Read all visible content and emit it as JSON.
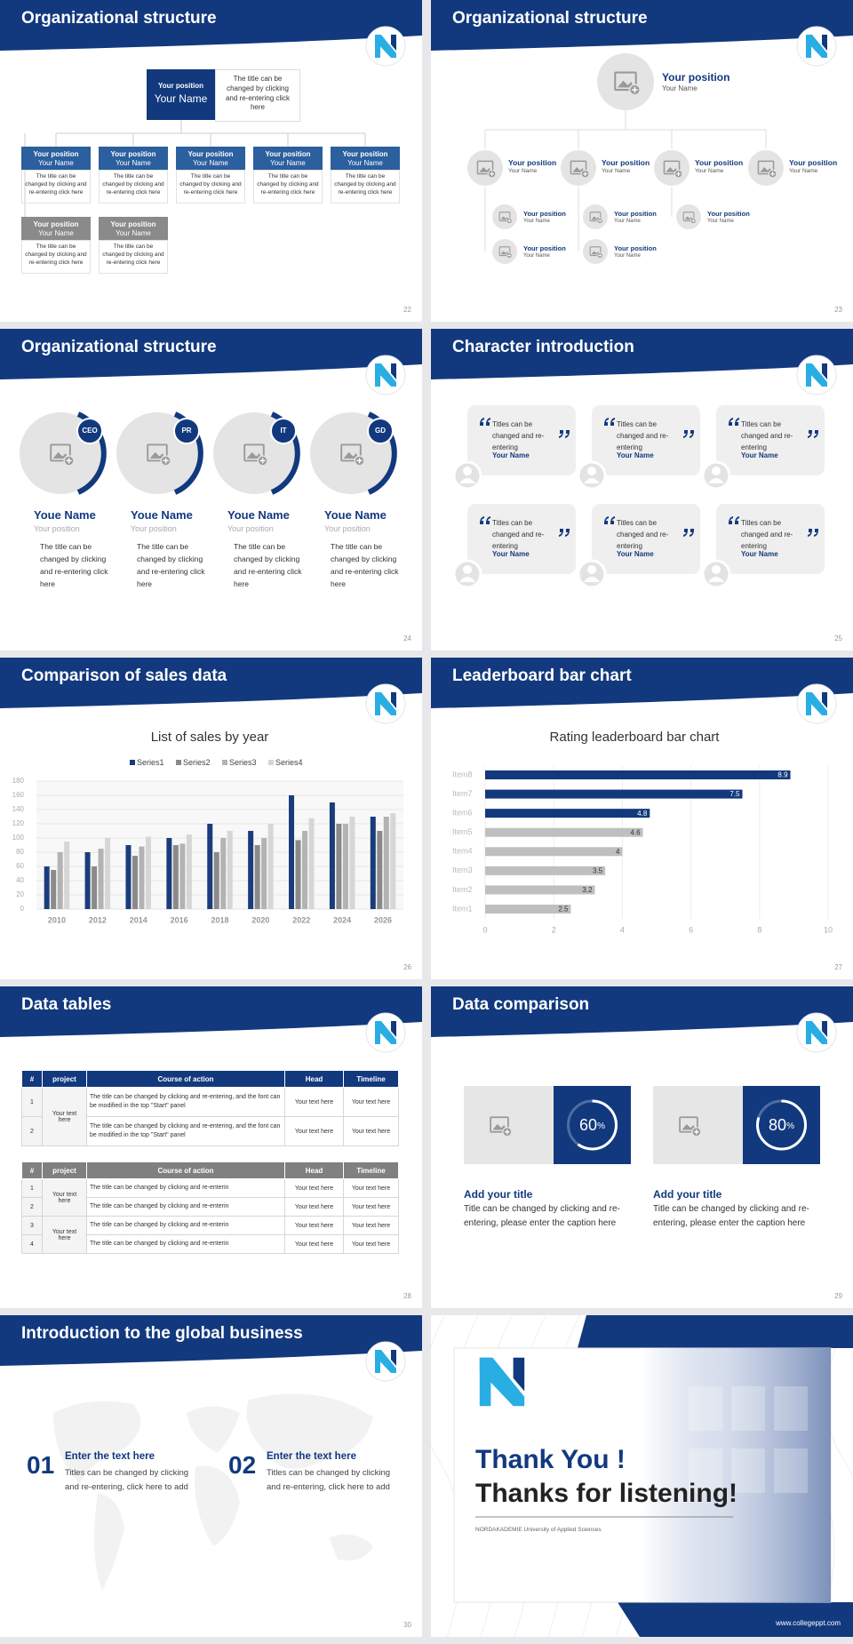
{
  "slides": [
    {
      "title": "Organizational structure",
      "page": "22",
      "head": {
        "position": "Your position",
        "name": "Your Name",
        "text": "The title can be changed by clicking and re-entering click here"
      },
      "members": [
        {
          "position": "Your position",
          "name": "Your Name",
          "text": "The title can be changed by clicking and re-entering click here"
        },
        {
          "position": "Your position",
          "name": "Your Name",
          "text": "The title can be changed by clicking and re-entering click here"
        },
        {
          "position": "Your position",
          "name": "Your Name",
          "text": "The title can be changed by clicking and re-entering click here"
        },
        {
          "position": "Your position",
          "name": "Your Name",
          "text": "The title can be changed by clicking and re-entering click here"
        },
        {
          "position": "Your position",
          "name": "Your Name",
          "text": "The title can be changed by clicking and re-entering click here"
        },
        {
          "position": "Your position",
          "name": "Your Name",
          "text": "The title can be changed by clicking and re-entering click here"
        },
        {
          "position": "Your position",
          "name": "Your Name",
          "text": "The title can be changed by clicking and re-entering click here"
        }
      ]
    },
    {
      "title": "Organizational structure",
      "page": "23",
      "head": {
        "position": "Your position",
        "name": "Your Name"
      },
      "members": [
        {
          "position": "Your position",
          "name": "Your Name"
        },
        {
          "position": "Your position",
          "name": "Your Name"
        },
        {
          "position": "Your position",
          "name": "Your Name"
        },
        {
          "position": "Your position",
          "name": "Your Name"
        }
      ],
      "subs": [
        {
          "position": "Your position",
          "name": "Your Name"
        },
        {
          "position": "Your position",
          "name": "Your Name"
        },
        {
          "position": "Your position",
          "name": "Your Name"
        },
        {
          "position": "Your position",
          "name": "Your Name"
        },
        {
          "position": "Your position",
          "name": "Your Name"
        }
      ]
    },
    {
      "title": "Organizational structure",
      "page": "24",
      "people": [
        {
          "badge": "CEO",
          "name": "Youe Name",
          "position": "Your position",
          "text": "The title can be changed by clicking and re-entering click here"
        },
        {
          "badge": "PR",
          "name": "Youe Name",
          "position": "Your position",
          "text": "The title can be changed by clicking and re-entering click here"
        },
        {
          "badge": "IT",
          "name": "Youe Name",
          "position": "Your position",
          "text": "The title can be changed by clicking and re-entering click here"
        },
        {
          "badge": "GD",
          "name": "Youe Name",
          "position": "Your position",
          "text": "The title can be changed by clicking and re-entering click here"
        }
      ]
    },
    {
      "title": "Character introduction",
      "page": "25",
      "cards": [
        {
          "quote": "Titles can be changed and re-entering",
          "name": "Your Name"
        },
        {
          "quote": "Titles can be changed and re-entering",
          "name": "Your Name"
        },
        {
          "quote": "Titles can be changed and re-entering",
          "name": "Your Name"
        },
        {
          "quote": "Titles can be changed and re-entering",
          "name": "Your Name"
        },
        {
          "quote": "Titles can be changed and re-entering",
          "name": "Your Name"
        },
        {
          "quote": "Titles can be changed and re-entering",
          "name": "Your Name"
        }
      ]
    },
    {
      "title": "Comparison of sales data",
      "page": "26"
    },
    {
      "title": "Leaderboard bar chart",
      "page": "27"
    },
    {
      "title": "Data tables",
      "page": "28",
      "tables": [
        {
          "header": [
            "#",
            "project",
            "Course of action",
            "Head",
            "Timeline"
          ],
          "projects": [
            "Your text here"
          ],
          "rows": [
            [
              "1",
              "The title can be changed by clicking and re-entering, and the font can be modified in the top \"Start\" panel",
              "Your text here",
              "Your text here"
            ],
            [
              "2",
              "The title can be changed by clicking and re-entering, and the font can be modified in the top \"Start\" panel",
              "Your text here",
              "Your text here"
            ]
          ]
        },
        {
          "header": [
            "#",
            "project",
            "Course of action",
            "Head",
            "Timeline"
          ],
          "projects": [
            "Your text here",
            "Your text here"
          ],
          "rows": [
            [
              "1",
              "The title can be changed by clicking and re-enterin",
              "Your text here",
              "Your text here"
            ],
            [
              "2",
              "The title can be changed by clicking and re-enterin",
              "Your text here",
              "Your text here"
            ],
            [
              "3",
              "The title can be changed by clicking and re-enterin",
              "Your text here",
              "Your text here"
            ],
            [
              "4",
              "The title can be changed by clicking and re-enterin",
              "Your text here",
              "Your text here"
            ]
          ]
        }
      ]
    },
    {
      "title": "Data comparison",
      "page": "29",
      "items": [
        {
          "value": 60,
          "unit": "%",
          "title": "Add your title",
          "text": "Title can be changed by clicking and re-entering, please enter the caption here"
        },
        {
          "value": 80,
          "unit": "%",
          "title": "Add your title",
          "text": "Title can be changed by clicking and re-entering, please enter the caption here"
        }
      ]
    },
    {
      "title": "Introduction to the global business",
      "page": "30",
      "items": [
        {
          "number": "01",
          "title": "Enter the text here",
          "text": "Titles can be changed by clicking and re-entering, click here to add"
        },
        {
          "number": "02",
          "title": "Enter the text here",
          "text": "Titles can be changed by clicking and re-entering, click here to add"
        }
      ]
    },
    {
      "title": "Thank You !",
      "subtitle": "Thanks for listening!",
      "caption": "NORDAKADEMIE University of Applied Sciences",
      "url": "www.collegeppt.com"
    }
  ],
  "chart_data": [
    {
      "type": "bar",
      "title": "List of sales by year",
      "categories": [
        "2010",
        "2012",
        "2014",
        "2016",
        "2018",
        "2020",
        "2022",
        "2024",
        "2026"
      ],
      "series": [
        {
          "name": "Series1",
          "color": "#1b3c7c",
          "values": [
            60,
            80,
            90,
            100,
            120,
            110,
            160,
            150,
            130
          ]
        },
        {
          "name": "Series2",
          "color": "#8a8a8a",
          "values": [
            55,
            60,
            75,
            90,
            80,
            90,
            97,
            120,
            110
          ]
        },
        {
          "name": "Series3",
          "color": "#b3b3b3",
          "values": [
            80,
            85,
            88,
            92,
            100,
            100,
            110,
            120,
            130
          ]
        },
        {
          "name": "Series4",
          "color": "#d6d6d6",
          "values": [
            95,
            100,
            102,
            105,
            110,
            120,
            128,
            130,
            135
          ]
        }
      ],
      "ylim": [
        0,
        180
      ],
      "yticks": [
        0,
        20,
        40,
        60,
        80,
        100,
        120,
        140,
        160,
        180
      ],
      "grid": true,
      "legend": "top"
    },
    {
      "type": "barh",
      "title": "Rating leaderboard bar chart",
      "categories": [
        "Item1",
        "Item2",
        "Item3",
        "Item4",
        "Item5",
        "Item6",
        "Item7",
        "Item8"
      ],
      "values": [
        2.5,
        3.2,
        3.5,
        4,
        4.6,
        4.8,
        7.5,
        8.9
      ],
      "colors": [
        "#bfbfbf",
        "#bfbfbf",
        "#bfbfbf",
        "#bfbfbf",
        "#bfbfbf",
        "#12397e",
        "#12397e",
        "#12397e"
      ],
      "xlim": [
        0,
        10
      ],
      "xticks": [
        0,
        2,
        4,
        6,
        8,
        10
      ],
      "grid": true
    }
  ]
}
